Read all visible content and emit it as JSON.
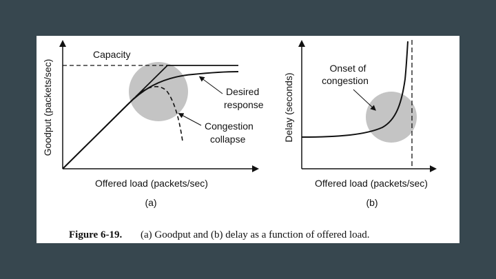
{
  "figure": {
    "caption_bold": "Figure 6-19.",
    "caption_text": "(a) Goodput and (b) delay as a function of offered load."
  },
  "panel_a": {
    "ylabel": "Goodput (packets/sec)",
    "xlabel": "Offered load (packets/sec)",
    "sublabel": "(a)",
    "capacity_label": "Capacity",
    "desired_label_1": "Desired",
    "desired_label_2": "response",
    "collapse_label_1": "Congestion",
    "collapse_label_2": "collapse"
  },
  "panel_b": {
    "ylabel": "Delay (seconds)",
    "xlabel": "Offered load (packets/sec)",
    "sublabel": "(b)",
    "onset_label_1": "Onset of",
    "onset_label_2": "congestion"
  },
  "colors": {
    "background": "#37474f",
    "panel": "#ffffff",
    "highlight": "#c4c4c4",
    "ink": "#111111"
  }
}
